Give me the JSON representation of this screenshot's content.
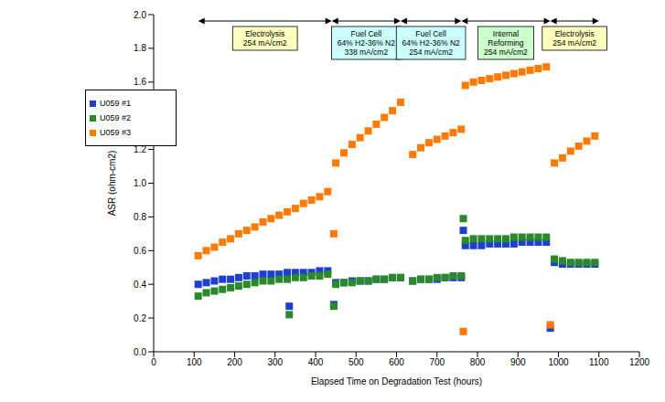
{
  "chart_data": {
    "type": "scatter",
    "x_label": "Elapsed Time on Degradation Test (hours)",
    "y_label": "ASR (ohm-cm2)",
    "xlim": [
      0,
      1200
    ],
    "xticks": [
      0,
      100,
      200,
      300,
      400,
      500,
      600,
      700,
      800,
      900,
      1000,
      1100,
      1200
    ],
    "ylim": [
      0,
      2
    ],
    "yticks": [
      {
        "value": 0,
        "label": "0.0"
      },
      0.2,
      0.4,
      0.6,
      0.8,
      {
        "value": 1,
        "label": "1.0"
      },
      1.2,
      1.4,
      1.6,
      1.8,
      {
        "value": 2,
        "label": "2.0"
      }
    ],
    "grid": false,
    "legend": "upper left",
    "marker": "square",
    "x": [
      110,
      130,
      150,
      170,
      190,
      210,
      230,
      250,
      270,
      290,
      310,
      330,
      350,
      370,
      390,
      410,
      430,
      450,
      470,
      490,
      510,
      530,
      550,
      570,
      590,
      610,
      640,
      660,
      680,
      700,
      720,
      740,
      760,
      770,
      790,
      810,
      830,
      850,
      870,
      890,
      910,
      930,
      950,
      970,
      990,
      1010,
      1030,
      1050,
      1070,
      1090,
      335,
      445,
      765,
      980
    ],
    "series": [
      {
        "name": "U059 #1",
        "color": "#1c3fd1",
        "values": [
          0.4,
          0.41,
          0.42,
          0.43,
          0.43,
          0.44,
          0.45,
          0.45,
          0.46,
          0.46,
          0.46,
          0.47,
          0.47,
          0.47,
          0.47,
          0.48,
          0.48,
          0.41,
          0.41,
          0.42,
          0.42,
          0.42,
          0.43,
          0.43,
          0.44,
          0.44,
          0.42,
          0.43,
          0.43,
          0.43,
          0.44,
          0.44,
          0.44,
          0.63,
          0.63,
          0.63,
          0.64,
          0.64,
          0.64,
          0.64,
          0.65,
          0.65,
          0.65,
          0.65,
          0.53,
          0.52,
          0.52,
          0.52,
          0.52,
          0.52,
          0.27,
          0.28,
          0.72,
          0.14
        ]
      },
      {
        "name": "U059 #2",
        "color": "#2a8a2a",
        "values": [
          0.33,
          0.35,
          0.36,
          0.37,
          0.38,
          0.39,
          0.4,
          0.41,
          0.42,
          0.42,
          0.43,
          0.43,
          0.44,
          0.44,
          0.45,
          0.45,
          0.46,
          0.4,
          0.41,
          0.41,
          0.42,
          0.42,
          0.43,
          0.43,
          0.44,
          0.44,
          0.42,
          0.43,
          0.43,
          0.44,
          0.44,
          0.45,
          0.45,
          0.66,
          0.67,
          0.67,
          0.67,
          0.67,
          0.67,
          0.68,
          0.68,
          0.68,
          0.68,
          0.68,
          0.55,
          0.54,
          0.53,
          0.53,
          0.53,
          0.53,
          0.22,
          0.27,
          0.79,
          null
        ]
      },
      {
        "name": "U059 #3",
        "color": "#ff7a00",
        "values": [
          0.57,
          0.6,
          0.62,
          0.65,
          0.67,
          0.7,
          0.72,
          0.74,
          0.77,
          0.79,
          0.81,
          0.83,
          0.85,
          0.88,
          0.9,
          0.92,
          0.95,
          1.12,
          1.18,
          1.23,
          1.27,
          1.31,
          1.35,
          1.39,
          1.43,
          1.48,
          1.17,
          1.21,
          1.24,
          1.26,
          1.28,
          1.3,
          1.32,
          1.58,
          1.6,
          1.61,
          1.62,
          1.63,
          1.64,
          1.65,
          1.66,
          1.67,
          1.68,
          1.69,
          1.12,
          1.15,
          1.19,
          1.22,
          1.25,
          1.28,
          null,
          0.7,
          0.12,
          0.16
        ]
      }
    ],
    "annotations": [
      {
        "text": [
          "Electrolysis",
          "254 mA/cm2"
        ],
        "x_start": 110,
        "x_end": 440,
        "color": "#ffffc0"
      },
      {
        "text": [
          "Fuel Cell",
          "64% H2-36% N2",
          "338 mA/cm2"
        ],
        "x_start": 440,
        "x_end": 610,
        "color": "#ccffff"
      },
      {
        "text": [
          "Fuel Cell",
          "64% H2-36% N2",
          "254 mA/cm2"
        ],
        "x_start": 610,
        "x_end": 760,
        "color": "#ccffff"
      },
      {
        "text": [
          "Internal",
          "Reforming",
          "254 mA/cm2"
        ],
        "x_start": 760,
        "x_end": 980,
        "color": "#ccffcc"
      },
      {
        "text": [
          "Electrolysis",
          "254 mA/cm2"
        ],
        "x_start": 980,
        "x_end": 1100,
        "color": "#ffffc0"
      }
    ]
  }
}
